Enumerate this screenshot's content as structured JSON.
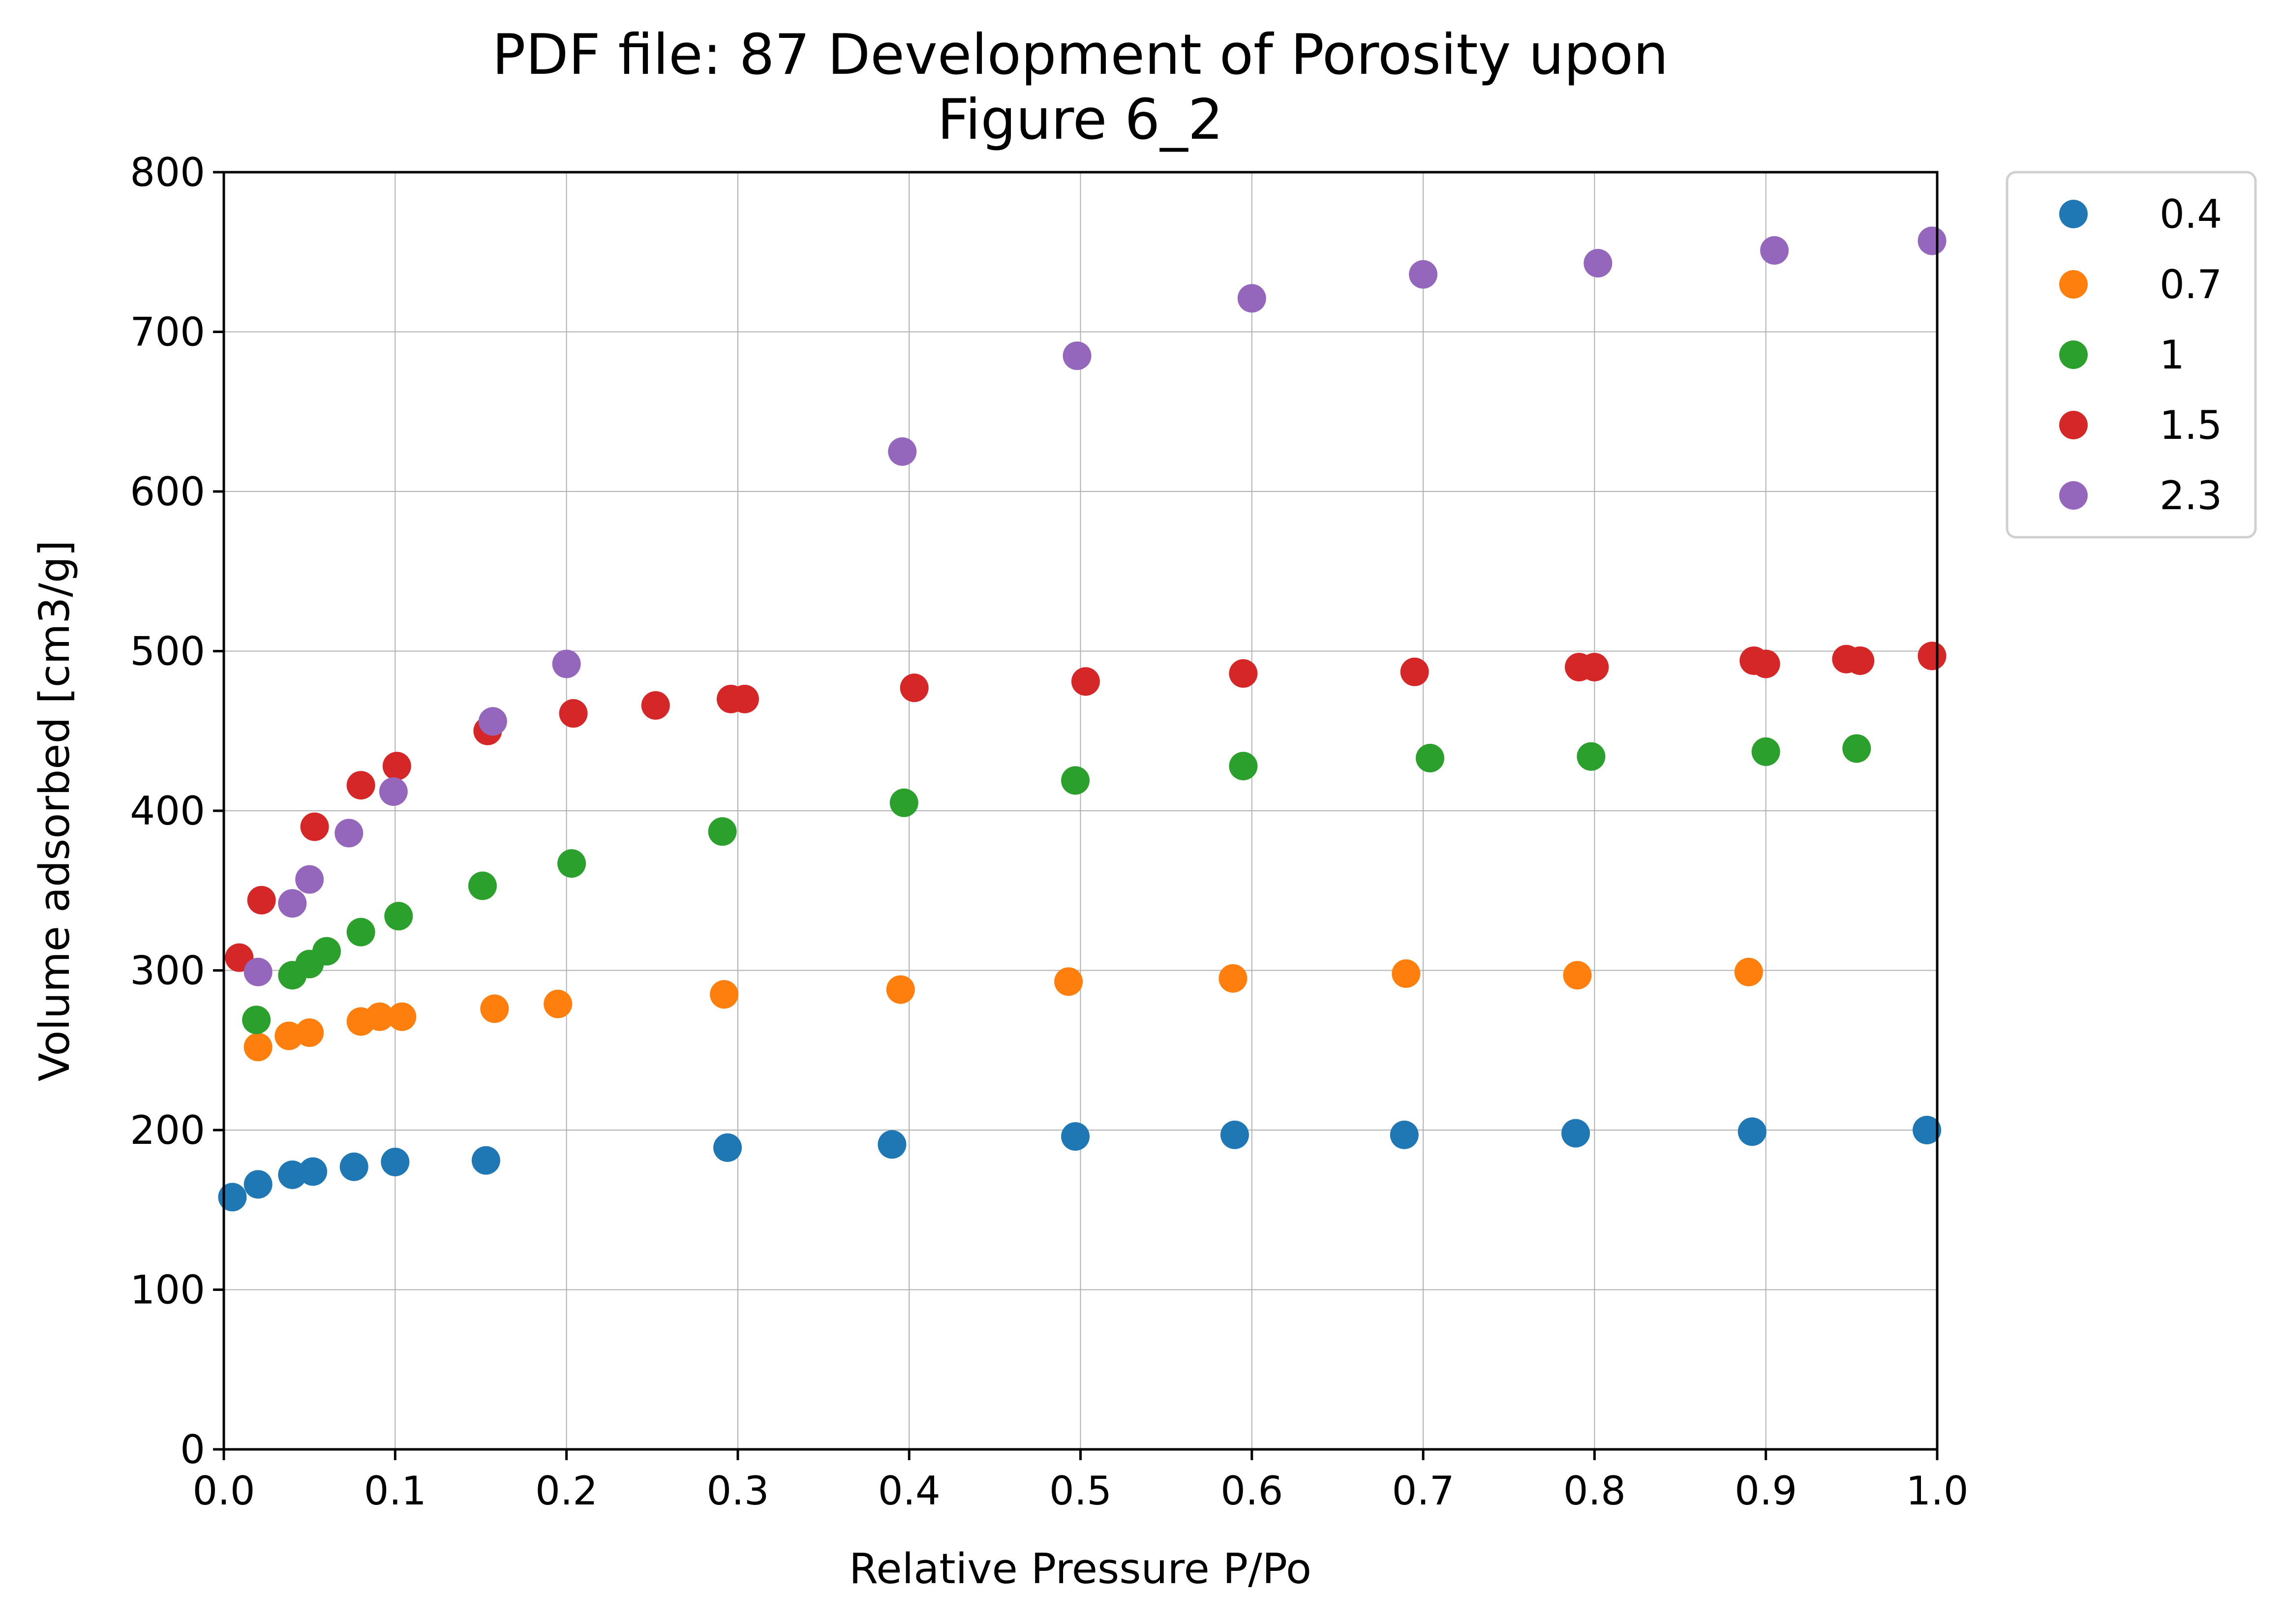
{
  "chart_data": {
    "type": "scatter",
    "title": [
      "PDF file: 87 Development of Porosity upon",
      "Figure 6_2"
    ],
    "xlabel": "Relative Pressure P/Po",
    "ylabel": "Volume adsorbed [cm3/g]",
    "xlim": [
      0.0,
      1.0
    ],
    "ylim": [
      0,
      800
    ],
    "xticks": [
      0.0,
      0.1,
      0.2,
      0.3,
      0.4,
      0.5,
      0.6,
      0.7,
      0.8,
      0.9,
      1.0
    ],
    "xtick_labels": [
      "0.0",
      "0.1",
      "0.2",
      "0.3",
      "0.4",
      "0.5",
      "0.6",
      "0.7",
      "0.8",
      "0.9",
      "1.0"
    ],
    "yticks": [
      0,
      100,
      200,
      300,
      400,
      500,
      600,
      700,
      800
    ],
    "ytick_labels": [
      "0",
      "100",
      "200",
      "300",
      "400",
      "500",
      "600",
      "700",
      "800"
    ],
    "grid": true,
    "legend_position": "outside-top-right",
    "series": [
      {
        "name": "0.4",
        "color": "#1f77b4",
        "points": [
          [
            0.005,
            158
          ],
          [
            0.02,
            166
          ],
          [
            0.04,
            172
          ],
          [
            0.052,
            174
          ],
          [
            0.076,
            177
          ],
          [
            0.1,
            180
          ],
          [
            0.153,
            181
          ],
          [
            0.294,
            189
          ],
          [
            0.39,
            191
          ],
          [
            0.497,
            196
          ],
          [
            0.59,
            197
          ],
          [
            0.689,
            197
          ],
          [
            0.789,
            198
          ],
          [
            0.892,
            199
          ],
          [
            0.994,
            200
          ]
        ]
      },
      {
        "name": "0.7",
        "color": "#ff7f0e",
        "points": [
          [
            0.02,
            252
          ],
          [
            0.038,
            259
          ],
          [
            0.05,
            261
          ],
          [
            0.08,
            268
          ],
          [
            0.091,
            271
          ],
          [
            0.104,
            271
          ],
          [
            0.158,
            276
          ],
          [
            0.195,
            279
          ],
          [
            0.292,
            285
          ],
          [
            0.395,
            288
          ],
          [
            0.493,
            293
          ],
          [
            0.589,
            295
          ],
          [
            0.69,
            298
          ],
          [
            0.79,
            297
          ],
          [
            0.89,
            299
          ]
        ]
      },
      {
        "name": "1",
        "color": "#2ca02c",
        "points": [
          [
            0.019,
            269
          ],
          [
            0.04,
            297
          ],
          [
            0.05,
            304
          ],
          [
            0.06,
            312
          ],
          [
            0.08,
            324
          ],
          [
            0.102,
            334
          ],
          [
            0.151,
            353
          ],
          [
            0.203,
            367
          ],
          [
            0.291,
            387
          ],
          [
            0.397,
            405
          ],
          [
            0.497,
            419
          ],
          [
            0.595,
            428
          ],
          [
            0.704,
            433
          ],
          [
            0.798,
            434
          ],
          [
            0.9,
            437
          ],
          [
            0.953,
            439
          ]
        ]
      },
      {
        "name": "1.5",
        "color": "#d62728",
        "points": [
          [
            0.009,
            308
          ],
          [
            0.022,
            344
          ],
          [
            0.053,
            390
          ],
          [
            0.08,
            416
          ],
          [
            0.101,
            428
          ],
          [
            0.154,
            450
          ],
          [
            0.204,
            461
          ],
          [
            0.252,
            466
          ],
          [
            0.296,
            470
          ],
          [
            0.304,
            470
          ],
          [
            0.403,
            477
          ],
          [
            0.503,
            481
          ],
          [
            0.595,
            486
          ],
          [
            0.695,
            487
          ],
          [
            0.791,
            490
          ],
          [
            0.8,
            490
          ],
          [
            0.893,
            494
          ],
          [
            0.9,
            492
          ],
          [
            0.947,
            495
          ],
          [
            0.955,
            494
          ],
          [
            0.997,
            497
          ]
        ]
      },
      {
        "name": "2.3",
        "color": "#9467bd",
        "points": [
          [
            0.02,
            299
          ],
          [
            0.04,
            342
          ],
          [
            0.05,
            357
          ],
          [
            0.073,
            386
          ],
          [
            0.099,
            412
          ],
          [
            0.157,
            456
          ],
          [
            0.2,
            492
          ],
          [
            0.396,
            625
          ],
          [
            0.498,
            685
          ],
          [
            0.6,
            721
          ],
          [
            0.7,
            736
          ],
          [
            0.802,
            743
          ],
          [
            0.905,
            751
          ],
          [
            0.997,
            757
          ]
        ]
      }
    ]
  }
}
